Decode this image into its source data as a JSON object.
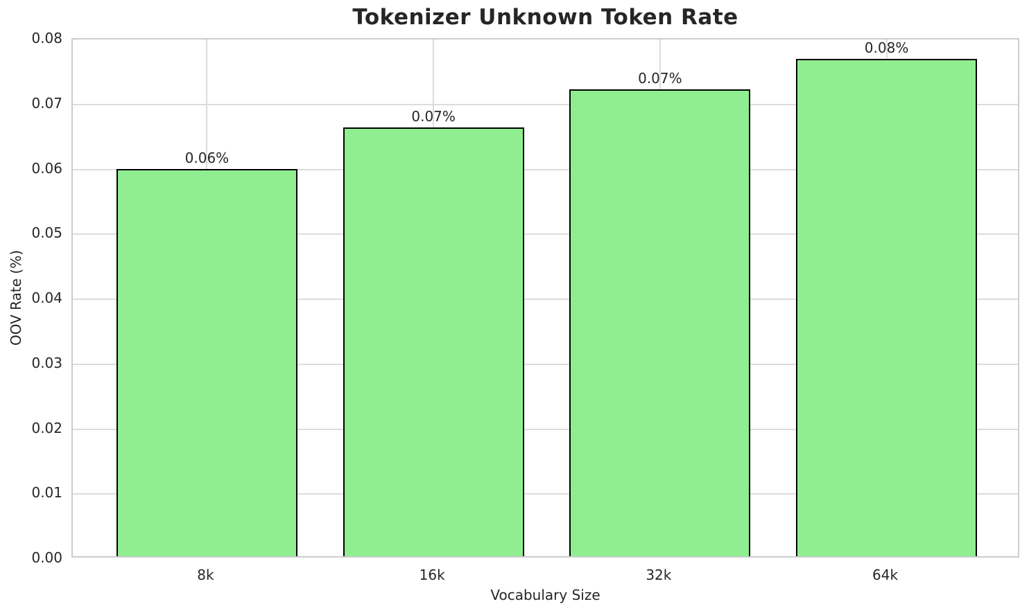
{
  "chart_data": {
    "type": "bar",
    "title": "Tokenizer Unknown Token Rate",
    "xlabel": "Vocabulary Size",
    "ylabel": "OOV Rate (%)",
    "categories": [
      "8k",
      "16k",
      "32k",
      "64k"
    ],
    "values": [
      0.0596,
      0.066,
      0.0719,
      0.0766
    ],
    "bar_labels": [
      "0.06%",
      "0.07%",
      "0.07%",
      "0.08%"
    ],
    "ylim": [
      0.0,
      0.08
    ],
    "ytick_labels": [
      "0.00",
      "0.01",
      "0.02",
      "0.03",
      "0.04",
      "0.05",
      "0.06",
      "0.07",
      "0.08"
    ],
    "grid": "on",
    "legend": "none",
    "bar_color": "#90EE90",
    "bar_edge_color": "#000000",
    "grid_color": "#dcdcdc",
    "spine_color": "#cccccc",
    "text_color": "#262626",
    "background_color": "#ffffff"
  }
}
